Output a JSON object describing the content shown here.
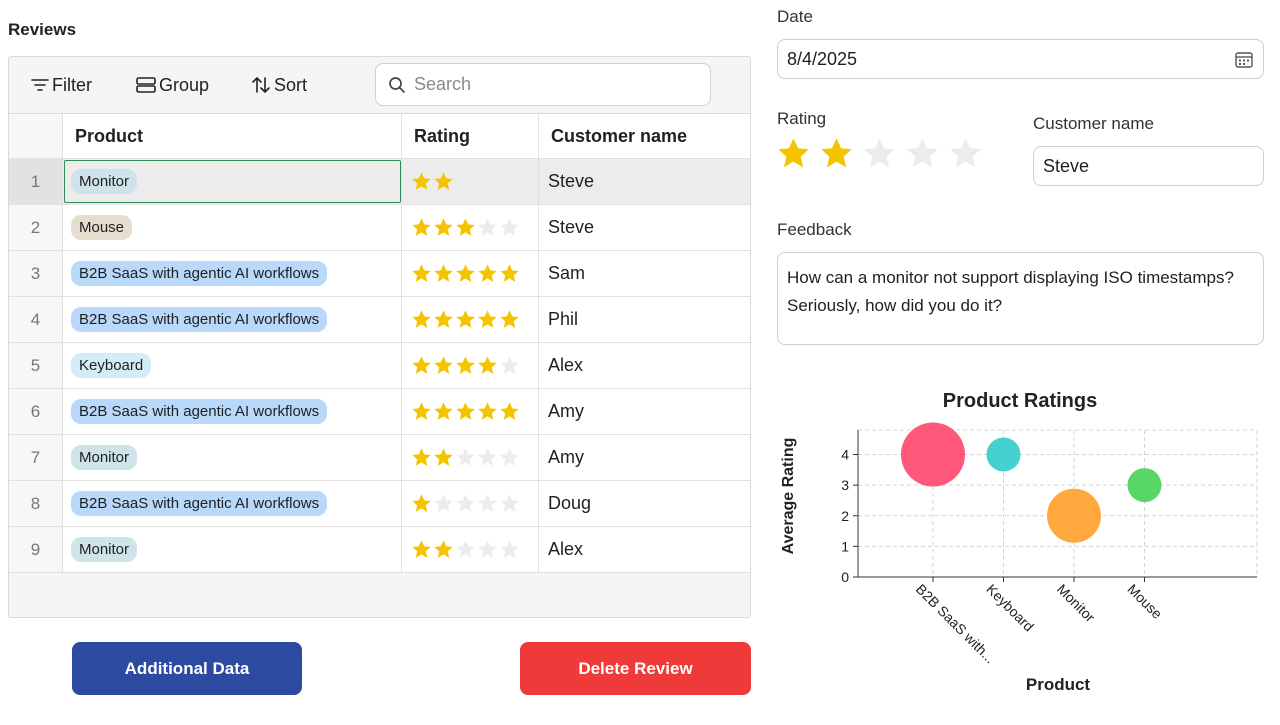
{
  "section_title": "Reviews",
  "toolbar": {
    "filter_label": "Filter",
    "group_label": "Group",
    "sort_label": "Sort",
    "search_placeholder": "Search"
  },
  "table": {
    "columns": [
      "Product",
      "Rating",
      "Customer name"
    ],
    "rows": [
      {
        "index": "1",
        "product": "Monitor",
        "rating": 2,
        "customer": "Steve",
        "selected": true
      },
      {
        "index": "2",
        "product": "Mouse",
        "rating": 3,
        "customer": "Steve"
      },
      {
        "index": "3",
        "product": "B2B SaaS with agentic AI workflows",
        "rating": 5,
        "customer": "Sam"
      },
      {
        "index": "4",
        "product": "B2B SaaS with agentic AI workflows",
        "rating": 5,
        "customer": "Phil"
      },
      {
        "index": "5",
        "product": "Keyboard",
        "rating": 4,
        "customer": "Alex"
      },
      {
        "index": "6",
        "product": "B2B SaaS with agentic AI workflows",
        "rating": 5,
        "customer": "Amy"
      },
      {
        "index": "7",
        "product": "Monitor",
        "rating": 2,
        "customer": "Amy"
      },
      {
        "index": "8",
        "product": "B2B SaaS with agentic AI workflows",
        "rating": 1,
        "customer": "Doug"
      },
      {
        "index": "9",
        "product": "Monitor",
        "rating": 2,
        "customer": "Alex"
      }
    ],
    "product_tag_colors": {
      "Monitor": "#cfe3ea",
      "Mouse": "#e6ddd0",
      "B2B SaaS with agentic AI workflows": "#b9d9fb",
      "Keyboard": "#d2ecf8"
    }
  },
  "buttons": {
    "additional_label": "Additional Data",
    "delete_label": "Delete Review"
  },
  "form": {
    "date_label": "Date",
    "date_value": "8/4/2025",
    "rating_label": "Rating",
    "rating_value": 2,
    "rating_max": 5,
    "customer_label": "Customer name",
    "customer_value": "Steve",
    "feedback_label": "Feedback",
    "feedback_value": "How can a monitor not support displaying ISO timestamps? Seriously, how did you do it?"
  },
  "colors": {
    "star_filled": "#f5c400",
    "star_empty": "#ececec",
    "accent_blue": "#2b4aa0",
    "danger_red": "#ef3a3a",
    "selection_green": "#2e8b57"
  },
  "chart_data": {
    "type": "scatter",
    "title": "Product Ratings",
    "xlabel": "Product",
    "ylabel": "Average Rating",
    "categories": [
      "B2B SaaS with agentic AI workflows",
      "Keyboard",
      "Monitor",
      "Mouse"
    ],
    "tick_labels": [
      "B2B SaaS with...",
      "Keyboard",
      "Monitor",
      "Mouse"
    ],
    "values": [
      4,
      4,
      2,
      3
    ],
    "review_counts": [
      4,
      1,
      3,
      1
    ],
    "colors": [
      "#ff4f73",
      "#3ccfcf",
      "#ffa333",
      "#4fd45e"
    ],
    "ylim": [
      0,
      4.8
    ],
    "yticks": [
      0,
      1,
      2,
      3,
      4
    ],
    "grid": true
  }
}
